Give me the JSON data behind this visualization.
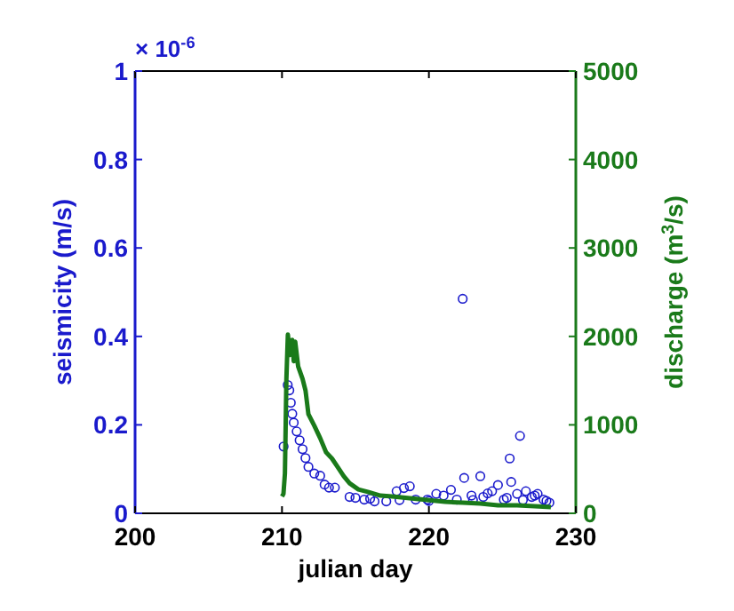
{
  "chart_data": {
    "type": "scatter",
    "xlabel": "julian day",
    "ylabel": "seismicity (m/s)",
    "y2label": "discharge (m$^{3}$/s)",
    "annotations": [
      "× 10$^{-6}$"
    ],
    "xlim": [
      200,
      230
    ],
    "xticks": [
      200,
      210,
      220,
      230
    ],
    "ylim": [
      0,
      1
    ],
    "yticks": [
      0,
      0.2,
      0.4,
      0.6,
      0.8,
      1
    ],
    "y2lim": [
      0,
      5000
    ],
    "y2ticks": [
      0,
      1000,
      2000,
      3000,
      4000,
      5000
    ],
    "grid": false,
    "marker": "circle",
    "series": [
      {
        "color": "#1a1acc",
        "axis": "y",
        "x": [
          210.11,
          210.39,
          210.5,
          210.6,
          210.7,
          210.8,
          211.0,
          211.2,
          211.4,
          211.6,
          211.8,
          212.2,
          212.6,
          212.9,
          213.2,
          213.6,
          214.6,
          215.0,
          215.6,
          216.3,
          217.1,
          217.8,
          218.3,
          218.7,
          219.1,
          219.9,
          220.5,
          221.5,
          221.9,
          222.3,
          222.4,
          222.9,
          223.5,
          223.7,
          224.3,
          224.7,
          225.1,
          225.5,
          225.6,
          226.0,
          226.2,
          226.6,
          227.0,
          227.4,
          227.8,
          228.2,
          216.0,
          218.0,
          220.0,
          221.0,
          223.0,
          224.0,
          225.3,
          226.4,
          227.2,
          228.0
        ],
        "values": [
          0.151,
          0.29,
          0.278,
          0.25,
          0.225,
          0.205,
          0.185,
          0.165,
          0.145,
          0.125,
          0.105,
          0.09,
          0.085,
          0.065,
          0.058,
          0.058,
          0.037,
          0.035,
          0.031,
          0.027,
          0.027,
          0.05,
          0.057,
          0.061,
          0.031,
          0.031,
          0.044,
          0.053,
          0.031,
          0.485,
          0.08,
          0.04,
          0.084,
          0.037,
          0.05,
          0.064,
          0.031,
          0.124,
          0.071,
          0.044,
          0.175,
          0.05,
          0.037,
          0.044,
          0.031,
          0.024,
          0.033,
          0.03,
          0.028,
          0.04,
          0.03,
          0.045,
          0.035,
          0.03,
          0.04,
          0.028
        ]
      },
      {
        "type": "line",
        "color": "#1a7a1a",
        "axis": "y2",
        "marker": "none",
        "x": [
          210.0,
          210.1,
          210.2,
          210.3,
          210.4,
          210.55,
          210.7,
          210.8,
          210.9,
          211.1,
          211.4,
          211.6,
          211.8,
          212.2,
          212.6,
          213.0,
          213.4,
          213.8,
          214.2,
          214.6,
          215.2,
          215.9,
          216.7,
          217.5,
          218.7,
          219.9,
          221.1,
          222.3,
          223.5,
          224.7,
          226.0,
          227.2,
          228.3
        ],
        "values": [
          190,
          220,
          450,
          1520,
          2020,
          1790,
          1960,
          1720,
          1940,
          1660,
          1520,
          1390,
          1120,
          990,
          850,
          690,
          620,
          520,
          420,
          340,
          270,
          240,
          200,
          190,
          170,
          150,
          130,
          120,
          110,
          90,
          90,
          80,
          70
        ]
      }
    ]
  }
}
